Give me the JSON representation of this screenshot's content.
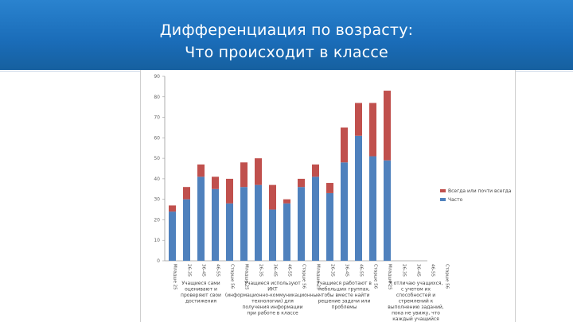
{
  "slide": {
    "title_line1": "Дифференциация по возрасту:",
    "title_line2": "Что происходит в классе"
  },
  "colors": {
    "header": "#1a6cb8",
    "series_blue": "#4f81bd",
    "series_red": "#c0504d"
  },
  "chart_data": {
    "type": "bar",
    "stacked": true,
    "categories": [
      "Младше 25",
      "26-35",
      "36-45",
      "46-55",
      "Старше 56",
      "Младше 25",
      "26-35",
      "36-45",
      "46-55",
      "Старше 56",
      "Младше 25",
      "26-35",
      "36-45",
      "46-55",
      "Старше 56",
      "Младше 25",
      "26-35",
      "36-45",
      "46-55",
      "Старше 56"
    ],
    "groups": [
      {
        "label": "Учащиеся сами оценивают и проверяют свои достижения",
        "count": 5
      },
      {
        "label": "Учащиеся используют ИКТ (информационно-коммуникационные технологии) для получения информации при работе в классе",
        "count": 5
      },
      {
        "label": "Учащиеся работают в небольших группах, чтобы вместе найти решение задачи или проблемы",
        "count": 5
      },
      {
        "label": "Я отличаю учащихся, с учетом их способностей и стремлений к выполнению заданий, пока не увижу, что каждый учащийся усвоил новый материал",
        "count": 5
      }
    ],
    "series": [
      {
        "name": "Часто",
        "color": "#4f81bd",
        "values": [
          24,
          30,
          41,
          35,
          28,
          36,
          37,
          25,
          28,
          36,
          41,
          33,
          48,
          61,
          51,
          49,
          0,
          0,
          0,
          0
        ]
      },
      {
        "name": "Всегда или почти всегда",
        "color": "#c0504d",
        "values": [
          3,
          6,
          6,
          6,
          12,
          12,
          13,
          12,
          2,
          4,
          6,
          5,
          17,
          16,
          26,
          34,
          0,
          0,
          0,
          0
        ]
      }
    ],
    "y_ticks": [
      "0",
      "10",
      "20",
      "30",
      "40",
      "50",
      "60",
      "70",
      "80",
      "90"
    ],
    "ylim": [
      0,
      90
    ],
    "legend_position": "right",
    "grid": false
  }
}
